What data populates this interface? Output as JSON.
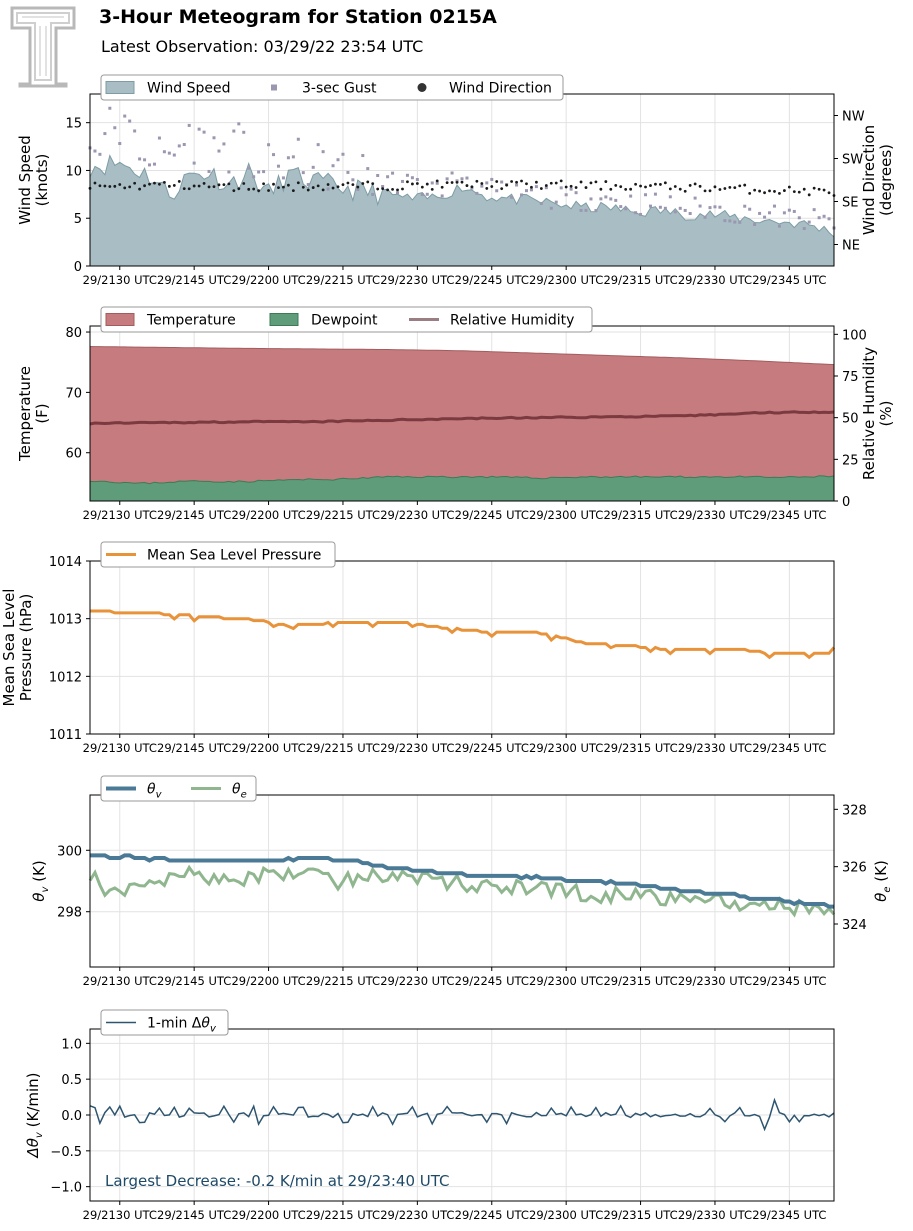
{
  "header": {
    "title": "3-Hour Meteogram for Station 0215A",
    "subtitle": "Latest Observation: 03/29/22 23:54 UTC"
  },
  "colors": {
    "wind_fill": "#a8bec4",
    "wind_line": "#7e9ca4",
    "gust": "#9b97b0",
    "direction": "#1a1a1a",
    "temperature": "#c67c7e",
    "dewpoint": "#5e9c7a",
    "rh": "#7a3a40",
    "mslp": "#e8923a",
    "theta_v": "#4b7a96",
    "theta_e": "#8fb68e",
    "dtheta": "#2e5570",
    "annotation": "#1e4a68"
  },
  "x_axis": {
    "tick_labels": [
      "29/2130 UTC",
      "29/2145 UTC",
      "29/2200 UTC",
      "29/2215 UTC",
      "29/2230 UTC",
      "29/2245 UTC",
      "29/2300 UTC",
      "29/2315 UTC",
      "29/2330 UTC",
      "29/2345 UTC"
    ],
    "start": "21:24",
    "end": "23:54",
    "step_minutes": 1
  },
  "chart_data": [
    {
      "type": "area",
      "id": "wind",
      "title": "",
      "ylabel_lines": [
        "Wind Speed",
        "(knots)"
      ],
      "ylabel2_lines": [
        "Wind Direction",
        "(degrees)"
      ],
      "ylim": [
        0,
        18
      ],
      "yticks": [
        "0",
        "5",
        "10",
        "15"
      ],
      "ytick_values": [
        0,
        5,
        10,
        15
      ],
      "y2_labels": [
        "NE",
        "SE",
        "SW",
        "NW"
      ],
      "y2_values": [
        45,
        135,
        225,
        315
      ],
      "y2lim": [
        0,
        360
      ],
      "legend": [
        {
          "label": "Wind Speed",
          "kind": "patch"
        },
        {
          "label": "3-sec Gust",
          "kind": "square"
        },
        {
          "label": "Wind Direction",
          "kind": "dot"
        }
      ],
      "series": [
        {
          "name": "Wind Speed",
          "anchors": [
            [
              0,
              10.5
            ],
            [
              6,
              10.8
            ],
            [
              12,
              9.5
            ],
            [
              16,
              7.5
            ],
            [
              20,
              9.5
            ],
            [
              24,
              9.8
            ],
            [
              28,
              8.5
            ],
            [
              32,
              9.8
            ],
            [
              36,
              7.5
            ],
            [
              40,
              9.5
            ],
            [
              45,
              8.8
            ],
            [
              50,
              8.3
            ],
            [
              55,
              7.8
            ],
            [
              60,
              7.5
            ],
            [
              65,
              7.0
            ],
            [
              70,
              7.2
            ],
            [
              75,
              8.3
            ],
            [
              80,
              7.3
            ],
            [
              85,
              7.0
            ],
            [
              90,
              6.8
            ],
            [
              95,
              6.4
            ],
            [
              100,
              6.1
            ],
            [
              105,
              6.1
            ],
            [
              110,
              5.6
            ],
            [
              115,
              5.8
            ],
            [
              120,
              5.4
            ],
            [
              125,
              5.4
            ],
            [
              130,
              5.1
            ],
            [
              135,
              4.8
            ],
            [
              140,
              4.6
            ],
            [
              145,
              4.3
            ],
            [
              150,
              3.5
            ]
          ]
        },
        {
          "name": "3-sec Gust",
          "anchors": [
            [
              0,
              12.0
            ],
            [
              5,
              15.0
            ],
            [
              10,
              12.5
            ],
            [
              15,
              11.0
            ],
            [
              20,
              13.5
            ],
            [
              25,
              12.0
            ],
            [
              30,
              12.5
            ],
            [
              35,
              10.0
            ],
            [
              40,
              11.0
            ],
            [
              45,
              10.5
            ],
            [
              50,
              10.0
            ],
            [
              55,
              9.5
            ],
            [
              60,
              9.0
            ],
            [
              65,
              8.5
            ],
            [
              70,
              8.0
            ],
            [
              75,
              9.5
            ],
            [
              80,
              8.0
            ],
            [
              85,
              7.5
            ],
            [
              90,
              7.5
            ],
            [
              95,
              7.0
            ],
            [
              100,
              7.0
            ],
            [
              105,
              7.0
            ],
            [
              110,
              6.5
            ],
            [
              115,
              6.5
            ],
            [
              120,
              6.0
            ],
            [
              125,
              6.0
            ],
            [
              130,
              5.5
            ],
            [
              135,
              5.5
            ],
            [
              140,
              5.0
            ],
            [
              145,
              4.8
            ],
            [
              150,
              4.5
            ]
          ]
        },
        {
          "name": "Wind Direction",
          "anchors": [
            [
              0,
              165
            ],
            [
              15,
              170
            ],
            [
              30,
              165
            ],
            [
              45,
              167
            ],
            [
              60,
              168
            ],
            [
              75,
              170
            ],
            [
              90,
              170
            ],
            [
              105,
              168
            ],
            [
              120,
              165
            ],
            [
              135,
              160
            ],
            [
              150,
              155
            ]
          ]
        }
      ]
    },
    {
      "type": "area",
      "id": "temp",
      "ylabel_lines": [
        "Temperature",
        "(F)"
      ],
      "ylabel2_lines": [
        "Relative Humidity",
        "(%)"
      ],
      "ylim": [
        52,
        81
      ],
      "yticks": [
        "60",
        "70",
        "80"
      ],
      "ytick_values": [
        60,
        70,
        80
      ],
      "y2lim": [
        0,
        105
      ],
      "y2ticks": [
        "0",
        "25",
        "50",
        "75",
        "100"
      ],
      "y2tick_values": [
        0,
        25,
        50,
        75,
        100
      ],
      "legend": [
        {
          "label": "Temperature",
          "kind": "patch"
        },
        {
          "label": "Dewpoint",
          "kind": "patch"
        },
        {
          "label": "Relative Humidity",
          "kind": "line"
        }
      ],
      "series": [
        {
          "name": "Temperature",
          "anchors": [
            [
              0,
              77.6
            ],
            [
              30,
              77.3
            ],
            [
              60,
              77.1
            ],
            [
              75,
              76.9
            ],
            [
              90,
              76.5
            ],
            [
              105,
              76.1
            ],
            [
              120,
              75.7
            ],
            [
              135,
              75.2
            ],
            [
              150,
              74.6
            ]
          ]
        },
        {
          "name": "Dewpoint",
          "anchors": [
            [
              0,
              55.4
            ],
            [
              10,
              54.9
            ],
            [
              20,
              55.3
            ],
            [
              30,
              55.2
            ],
            [
              40,
              55.5
            ],
            [
              50,
              55.6
            ],
            [
              60,
              56.0
            ],
            [
              70,
              56.0
            ],
            [
              80,
              56.0
            ],
            [
              90,
              55.8
            ],
            [
              100,
              56.0
            ],
            [
              110,
              56.0
            ],
            [
              120,
              56.0
            ],
            [
              130,
              56.0
            ],
            [
              140,
              55.9
            ],
            [
              150,
              56.1
            ]
          ]
        },
        {
          "name": "Relative Humidity",
          "anchors": [
            [
              0,
              46.5
            ],
            [
              15,
              47.0
            ],
            [
              30,
              47.5
            ],
            [
              45,
              47.5
            ],
            [
              60,
              48.5
            ],
            [
              75,
              49.5
            ],
            [
              90,
              50.0
            ],
            [
              105,
              50.5
            ],
            [
              120,
              51.0
            ],
            [
              135,
              53.0
            ],
            [
              150,
              53.5
            ]
          ]
        }
      ]
    },
    {
      "type": "line",
      "id": "mslp",
      "ylabel_lines": [
        "Mean Sea Level",
        "Pressure (hPa)"
      ],
      "ylim": [
        1011,
        1014
      ],
      "yticks": [
        "1011",
        "1012",
        "1013",
        "1014"
      ],
      "ytick_values": [
        1011,
        1012,
        1013,
        1014
      ],
      "legend": [
        {
          "label": "Mean Sea Level Pressure",
          "kind": "line"
        }
      ],
      "series": [
        {
          "name": "Mean Sea Level Pressure",
          "anchors": [
            [
              0,
              1013.13
            ],
            [
              15,
              1013.08
            ],
            [
              30,
              1013.0
            ],
            [
              35,
              1012.96
            ],
            [
              40,
              1012.88
            ],
            [
              50,
              1012.93
            ],
            [
              60,
              1012.94
            ],
            [
              65,
              1012.92
            ],
            [
              70,
              1012.85
            ],
            [
              80,
              1012.77
            ],
            [
              90,
              1012.75
            ],
            [
              90,
              1012.75
            ],
            [
              95,
              1012.67
            ],
            [
              100,
              1012.58
            ],
            [
              110,
              1012.52
            ],
            [
              115,
              1012.48
            ],
            [
              120,
              1012.47
            ],
            [
              130,
              1012.47
            ],
            [
              135,
              1012.42
            ],
            [
              140,
              1012.4
            ],
            [
              149,
              1012.39
            ],
            [
              150,
              1012.5
            ]
          ]
        }
      ]
    },
    {
      "type": "line",
      "id": "theta",
      "ylabel": "θ",
      "ylabel_sub": "v",
      "ylabel_unit": " (K)",
      "ylabel2": "θ",
      "ylabel2_sub": "e",
      "ylabel2_unit": " (K)",
      "ylim": [
        296.2,
        301.8
      ],
      "yticks": [
        "298",
        "300"
      ],
      "ytick_values": [
        298,
        300
      ],
      "y2lim": [
        322.5,
        328.5
      ],
      "y2ticks": [
        "324",
        "326",
        "328"
      ],
      "y2tick_values": [
        324,
        326,
        328
      ],
      "legend": [
        {
          "label": "θ",
          "sub": "v",
          "kind": "line"
        },
        {
          "label": "θ",
          "sub": "e",
          "kind": "line"
        }
      ],
      "series": [
        {
          "name": "θv",
          "anchors": [
            [
              0,
              299.85
            ],
            [
              15,
              299.7
            ],
            [
              30,
              299.65
            ],
            [
              45,
              299.75
            ],
            [
              55,
              299.6
            ],
            [
              60,
              299.45
            ],
            [
              75,
              299.2
            ],
            [
              90,
              299.1
            ],
            [
              105,
              298.95
            ],
            [
              120,
              298.7
            ],
            [
              135,
              298.45
            ],
            [
              150,
              298.15
            ]
          ]
        },
        {
          "name": "θe",
          "anchors": [
            [
              0,
              325.7
            ],
            [
              5,
              325.0
            ],
            [
              10,
              325.4
            ],
            [
              15,
              325.6
            ],
            [
              20,
              325.9
            ],
            [
              25,
              325.5
            ],
            [
              30,
              325.6
            ],
            [
              35,
              325.7
            ],
            [
              45,
              325.8
            ],
            [
              50,
              325.5
            ],
            [
              55,
              325.7
            ],
            [
              60,
              325.7
            ],
            [
              70,
              325.5
            ],
            [
              75,
              325.4
            ],
            [
              90,
              325.2
            ],
            [
              105,
              325.0
            ],
            [
              120,
              324.9
            ],
            [
              135,
              324.7
            ],
            [
              150,
              324.4
            ]
          ]
        }
      ]
    },
    {
      "type": "line",
      "id": "dtheta",
      "ylabel": "Δθ",
      "ylabel_sub": "v",
      "ylabel_unit": " (K/min)",
      "ylim": [
        -1.2,
        1.2
      ],
      "yticks": [
        "−1.0",
        "−0.5",
        "0.0",
        "0.5",
        "1.0"
      ],
      "ytick_values": [
        -1.0,
        -0.5,
        0.0,
        0.5,
        1.0
      ],
      "legend": [
        {
          "label": "1-min Δθ",
          "sub": "v",
          "kind": "line"
        }
      ],
      "annotation": "Largest Decrease: -0.2 K/min at 29/23:40 UTC",
      "series": [
        {
          "name": "1-min Δθv",
          "anchors": [
            [
              0,
              0.0
            ],
            [
              150,
              0.0
            ]
          ]
        }
      ]
    }
  ]
}
